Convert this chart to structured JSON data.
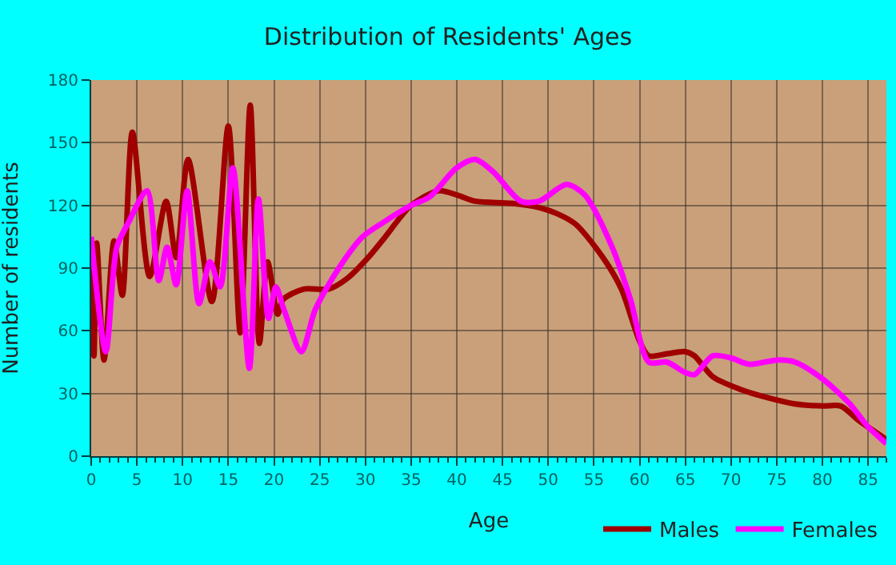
{
  "chart_data": {
    "type": "line",
    "title": "Distribution of Residents' Ages",
    "xlabel": "Age",
    "ylabel": "Number of residents",
    "xlim": [
      0,
      87
    ],
    "xticks": [
      0,
      5,
      10,
      15,
      20,
      25,
      30,
      35,
      40,
      45,
      50,
      55,
      60,
      65,
      70,
      75,
      80,
      85
    ],
    "ylim": [
      0,
      180
    ],
    "yticks": [
      0,
      30,
      60,
      90,
      120,
      150,
      180
    ],
    "grid": true,
    "legend": "bottom right",
    "marker": "none",
    "line_style": "solid",
    "series": [
      {
        "name": "Males",
        "color": "#a00000",
        "x": [
          0,
          0.3,
          0.6,
          1.4,
          2.5,
          3.4,
          4.5,
          6.4,
          8.2,
          9.3,
          10.6,
          13.2,
          15,
          16.3,
          17.4,
          18.4,
          19.3,
          20.4,
          21,
          23.3,
          26,
          28,
          30.3,
          32,
          35,
          38,
          40,
          42,
          46,
          49,
          51,
          53,
          56,
          58,
          60,
          61,
          63,
          65,
          66,
          68,
          71,
          74,
          77,
          80,
          82,
          84,
          87
        ],
        "values": [
          100,
          48,
          102,
          46,
          103,
          77,
          155,
          86,
          122,
          95,
          142,
          74,
          158,
          59,
          168,
          54,
          93,
          68,
          75,
          80,
          80,
          85,
          95,
          104,
          120,
          127,
          125,
          122,
          121,
          119,
          116,
          111,
          95,
          80,
          55,
          48,
          49,
          50,
          48,
          38,
          32,
          28,
          25,
          24,
          24,
          17,
          8
        ]
      },
      {
        "name": "Females",
        "color": "#ff00ff",
        "x": [
          0,
          1.6,
          2.8,
          4.1,
          6.1,
          7.4,
          8.3,
          9.3,
          10.5,
          11.8,
          13,
          14.1,
          15.5,
          17.3,
          18.3,
          19.4,
          20.2,
          21.1,
          23,
          24.5,
          27.1,
          29.7,
          32,
          35,
          37,
          40,
          42,
          44,
          47,
          49,
          52,
          54,
          57,
          59,
          61,
          63,
          65,
          66,
          68,
          70,
          72,
          75,
          77,
          80,
          83,
          85,
          87
        ],
        "values": [
          105,
          50,
          100,
          112,
          127,
          84,
          100,
          82,
          127,
          73,
          93,
          81,
          138,
          42,
          123,
          66,
          81,
          70,
          50,
          70,
          90,
          105,
          112,
          120,
          124,
          138,
          142,
          136,
          122,
          122,
          130,
          125,
          100,
          75,
          45,
          45,
          40,
          39,
          48,
          47,
          44,
          46,
          45,
          37,
          25,
          14,
          6
        ]
      }
    ]
  }
}
